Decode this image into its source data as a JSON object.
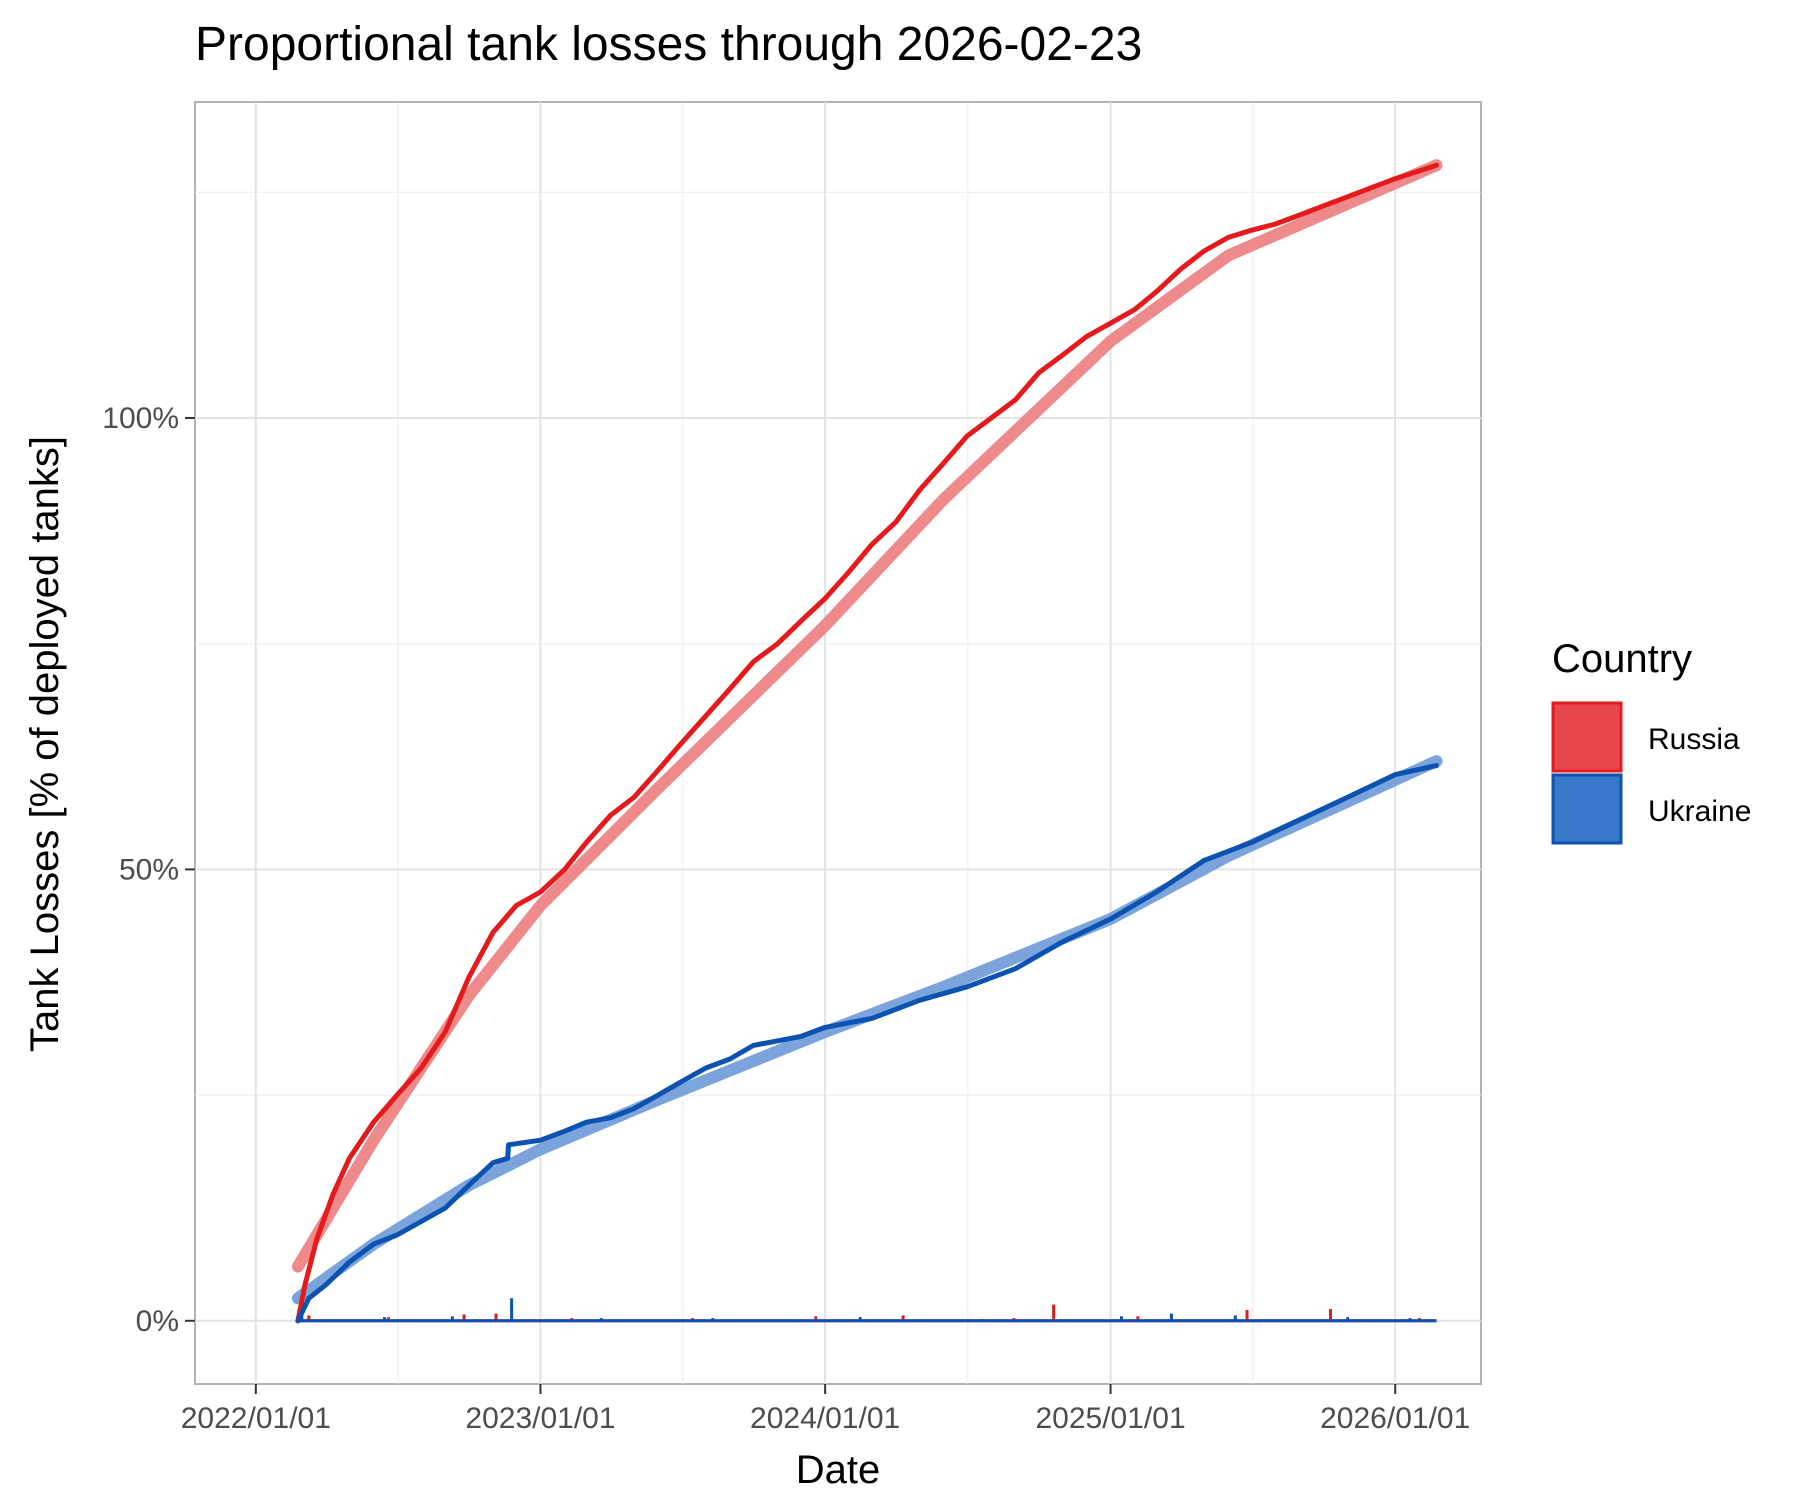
{
  "chart_data": {
    "type": "line",
    "title": "Proportional tank losses through 2026-02-23",
    "xlabel": "Date",
    "ylabel": "Tank Losses [% of deployed tanks]",
    "x_tick_labels": [
      "2022/01/01",
      "2023/01/01",
      "2024/01/01",
      "2025/01/01",
      "2026/01/01"
    ],
    "x_ticks": [
      "2022-01-01",
      "2023-01-01",
      "2024-01-01",
      "2025-01-01",
      "2026-01-01"
    ],
    "xlim": [
      "2021-10-15",
      "2026-04-21"
    ],
    "y_tick_labels": [
      "0%",
      "50%",
      "100%"
    ],
    "y_ticks": [
      0,
      50,
      100
    ],
    "ylim": [
      -7,
      135
    ],
    "grid": true,
    "legend": {
      "title": "Country",
      "placement": "right",
      "entries": [
        "Russia",
        "Ukraine"
      ]
    },
    "colors": {
      "Russia": "#e41a1c",
      "Russia_fill": "#e8474b",
      "Russia_trend": "#ef8a8c",
      "Ukraine": "#0b52b1",
      "Ukraine_fill": "#3878c8",
      "Ukraine_trend": "#7ba4dc"
    },
    "series": [
      {
        "name": "Russia",
        "cumulative": [
          [
            "2022-02-24",
            0
          ],
          [
            "2022-03-05",
            4
          ],
          [
            "2022-03-20",
            9
          ],
          [
            "2022-04-10",
            14
          ],
          [
            "2022-05-01",
            18
          ],
          [
            "2022-06-01",
            22
          ],
          [
            "2022-07-01",
            25
          ],
          [
            "2022-08-01",
            28
          ],
          [
            "2022-09-01",
            32
          ],
          [
            "2022-10-01",
            38
          ],
          [
            "2022-11-01",
            43
          ],
          [
            "2022-12-01",
            46
          ],
          [
            "2023-01-01",
            47.5
          ],
          [
            "2023-02-01",
            50
          ],
          [
            "2023-03-01",
            53
          ],
          [
            "2023-04-01",
            56
          ],
          [
            "2023-05-01",
            58
          ],
          [
            "2023-06-01",
            61
          ],
          [
            "2023-07-01",
            64
          ],
          [
            "2023-08-01",
            67
          ],
          [
            "2023-09-01",
            70
          ],
          [
            "2023-10-01",
            73
          ],
          [
            "2023-11-01",
            75
          ],
          [
            "2023-12-01",
            77.5
          ],
          [
            "2024-01-01",
            80
          ],
          [
            "2024-02-01",
            83
          ],
          [
            "2024-03-01",
            86
          ],
          [
            "2024-04-01",
            88.5
          ],
          [
            "2024-05-01",
            92
          ],
          [
            "2024-06-01",
            95
          ],
          [
            "2024-07-01",
            98
          ],
          [
            "2024-08-01",
            100
          ],
          [
            "2024-09-01",
            102
          ],
          [
            "2024-10-01",
            105
          ],
          [
            "2024-11-01",
            107
          ],
          [
            "2024-12-01",
            109
          ],
          [
            "2025-01-01",
            110.5
          ],
          [
            "2025-02-01",
            112
          ],
          [
            "2025-03-01",
            114
          ],
          [
            "2025-04-01",
            116.5
          ],
          [
            "2025-05-01",
            118.5
          ],
          [
            "2025-06-01",
            120
          ],
          [
            "2025-07-01",
            120.8
          ],
          [
            "2025-08-01",
            121.5
          ],
          [
            "2025-09-01",
            122.5
          ],
          [
            "2025-10-01",
            123.5
          ],
          [
            "2025-11-01",
            124.5
          ],
          [
            "2025-12-01",
            125.5
          ],
          [
            "2026-01-01",
            126.5
          ],
          [
            "2026-02-23",
            128
          ]
        ],
        "trend": [
          [
            "2022-02-24",
            6
          ],
          [
            "2022-06-01",
            20
          ],
          [
            "2022-10-01",
            36
          ],
          [
            "2023-01-01",
            46
          ],
          [
            "2023-06-01",
            59
          ],
          [
            "2024-01-01",
            77
          ],
          [
            "2024-06-01",
            91
          ],
          [
            "2025-01-01",
            108.5
          ],
          [
            "2025-06-01",
            118
          ],
          [
            "2026-02-23",
            128
          ]
        ],
        "daily": [
          [
            "2022-03-10",
            0.6
          ],
          [
            "2022-06-20",
            0.4
          ],
          [
            "2022-09-25",
            0.7
          ],
          [
            "2022-11-05",
            0.8
          ],
          [
            "2023-02-10",
            0.3
          ],
          [
            "2023-07-15",
            0.3
          ],
          [
            "2023-12-20",
            0.5
          ],
          [
            "2024-04-10",
            0.6
          ],
          [
            "2024-08-30",
            0.3
          ],
          [
            "2024-10-20",
            1.8
          ],
          [
            "2025-02-05",
            0.5
          ],
          [
            "2025-06-25",
            1.2
          ],
          [
            "2025-10-10",
            1.3
          ],
          [
            "2026-02-01",
            0.3
          ]
        ]
      },
      {
        "name": "Ukraine",
        "cumulative": [
          [
            "2022-02-24",
            0
          ],
          [
            "2022-03-10",
            2.5
          ],
          [
            "2022-04-01",
            4
          ],
          [
            "2022-05-01",
            6.5
          ],
          [
            "2022-06-01",
            8.5
          ],
          [
            "2022-07-01",
            9.5
          ],
          [
            "2022-08-01",
            11
          ],
          [
            "2022-09-01",
            12.5
          ],
          [
            "2022-10-01",
            15
          ],
          [
            "2022-11-01",
            17.5
          ],
          [
            "2022-11-20",
            18
          ],
          [
            "2022-11-21",
            19.5
          ],
          [
            "2023-01-01",
            20
          ],
          [
            "2023-02-01",
            21
          ],
          [
            "2023-03-01",
            22
          ],
          [
            "2023-04-01",
            22.5
          ],
          [
            "2023-05-01",
            23.5
          ],
          [
            "2023-06-01",
            25
          ],
          [
            "2023-07-01",
            26.5
          ],
          [
            "2023-08-01",
            28
          ],
          [
            "2023-09-01",
            29
          ],
          [
            "2023-10-01",
            30.5
          ],
          [
            "2023-12-01",
            31.5
          ],
          [
            "2024-01-01",
            32.5
          ],
          [
            "2024-03-01",
            33.5
          ],
          [
            "2024-05-01",
            35.5
          ],
          [
            "2024-07-01",
            37
          ],
          [
            "2024-09-01",
            39
          ],
          [
            "2024-11-01",
            42
          ],
          [
            "2025-01-01",
            44.5
          ],
          [
            "2025-03-01",
            47.5
          ],
          [
            "2025-05-01",
            51
          ],
          [
            "2025-07-01",
            53
          ],
          [
            "2025-09-01",
            55.5
          ],
          [
            "2025-11-01",
            58
          ],
          [
            "2026-01-01",
            60.5
          ],
          [
            "2026-02-23",
            61.5
          ]
        ],
        "trend": [
          [
            "2022-02-24",
            2.5
          ],
          [
            "2022-06-01",
            8.5
          ],
          [
            "2022-10-01",
            15
          ],
          [
            "2023-01-01",
            19
          ],
          [
            "2023-06-01",
            24.5
          ],
          [
            "2024-01-01",
            32
          ],
          [
            "2024-06-01",
            37
          ],
          [
            "2025-01-01",
            44.5
          ],
          [
            "2025-06-01",
            51.5
          ],
          [
            "2026-02-23",
            62
          ]
        ],
        "daily": [
          [
            "2022-03-01",
            0.8
          ],
          [
            "2022-06-15",
            0.4
          ],
          [
            "2022-09-10",
            0.5
          ],
          [
            "2022-11-25",
            2.5
          ],
          [
            "2023-03-20",
            0.3
          ],
          [
            "2023-08-10",
            0.3
          ],
          [
            "2024-02-15",
            0.4
          ],
          [
            "2024-07-20",
            0.2
          ],
          [
            "2025-01-15",
            0.5
          ],
          [
            "2025-03-20",
            0.8
          ],
          [
            "2025-06-10",
            0.6
          ],
          [
            "2025-11-01",
            0.4
          ],
          [
            "2026-01-20",
            0.3
          ]
        ]
      }
    ]
  }
}
